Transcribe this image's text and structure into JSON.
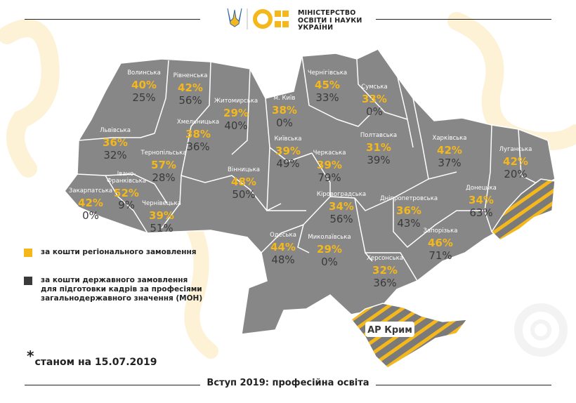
{
  "header": {
    "ministry_lines": [
      "МІНІСТЕРСТВО",
      "ОСВІТИ І НАУКИ",
      "УКРАЇНИ"
    ]
  },
  "colors": {
    "regional": "#f5b81c",
    "state": "#3a3a3a",
    "map_fill": "#878787",
    "map_border": "#ffffff",
    "accent_pale": "#fdf1d6"
  },
  "legend": {
    "regional": "за кошти регіонального замовлення",
    "state_lines": [
      "за кошти державного замовлення",
      "для підготовки кадрів за професіями",
      "загальнодержавного значення (МОН)"
    ]
  },
  "regions": [
    {
      "name": "Волинська",
      "regional": "40%",
      "state": "25%"
    },
    {
      "name": "Рівненська",
      "regional": "42%",
      "state": "56%"
    },
    {
      "name": "Житомирська",
      "regional": "29%",
      "state": "40%"
    },
    {
      "name": "м. Київ",
      "regional": "38%",
      "state": "0%"
    },
    {
      "name": "Чернігівська",
      "regional": "45%",
      "state": "33%"
    },
    {
      "name": "Сумська",
      "regional": "33%",
      "state": "0%"
    },
    {
      "name": "Львівська",
      "regional": "36%",
      "state": "32%"
    },
    {
      "name": "Тернопільська",
      "regional": "57%",
      "state": "28%"
    },
    {
      "name": "Хмельницька",
      "regional": "38%",
      "state": "36%"
    },
    {
      "name": "Київська",
      "regional": "39%",
      "state": "49%"
    },
    {
      "name": "Полтавська",
      "regional": "31%",
      "state": "39%"
    },
    {
      "name": "Харківська",
      "regional": "42%",
      "state": "37%"
    },
    {
      "name": "Луганська",
      "regional": "42%",
      "state": "20%"
    },
    {
      "name": "Черкаська",
      "regional": "39%",
      "state": "79%"
    },
    {
      "name": "Вінницька",
      "regional": "48%",
      "state": "50%"
    },
    {
      "name": "Івано-Франківська",
      "regional": "52%",
      "state": "9%"
    },
    {
      "name": "Закарпатська",
      "regional": "42%",
      "state": "0%"
    },
    {
      "name": "Чернівецька",
      "regional": "39%",
      "state": "51%"
    },
    {
      "name": "Кіровоградська",
      "regional": "34%",
      "state": "56%"
    },
    {
      "name": "Дніпропетровська",
      "regional": "36%",
      "state": "43%"
    },
    {
      "name": "Донецька",
      "regional": "34%",
      "state": "63%"
    },
    {
      "name": "Запорізька",
      "regional": "46%",
      "state": "71%"
    },
    {
      "name": "Одеська",
      "regional": "44%",
      "state": "48%"
    },
    {
      "name": "Миколаївська",
      "regional": "29%",
      "state": "0%"
    },
    {
      "name": "Херсонська",
      "regional": "32%",
      "state": "36%"
    }
  ],
  "crimea": {
    "name": "АР Крим"
  },
  "note": {
    "star": "*",
    "text": "станом на 15.07.2019"
  },
  "footer": {
    "title": "Вступ 2019: професійна освіта"
  }
}
